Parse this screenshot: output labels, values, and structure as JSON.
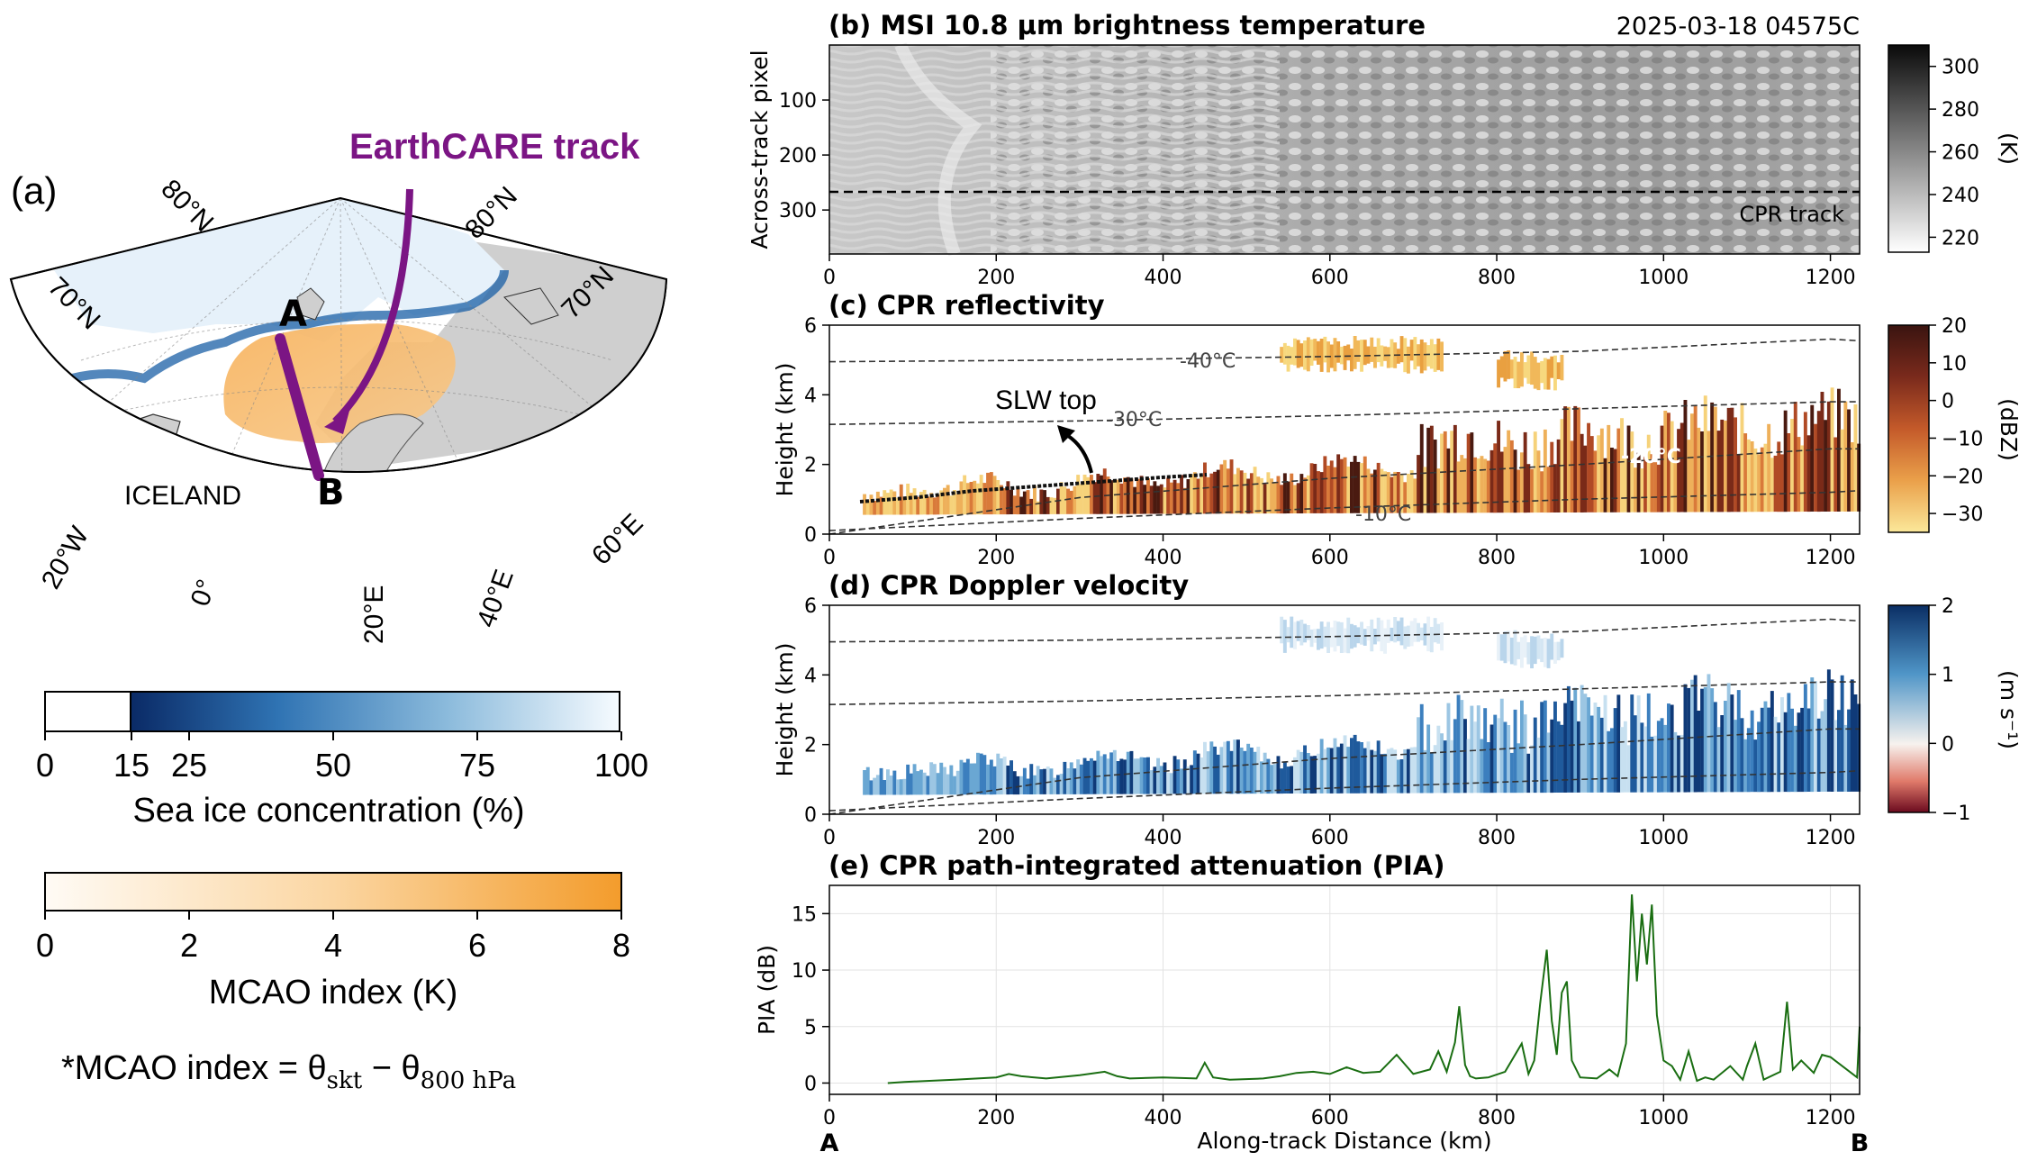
{
  "panel_a": {
    "label": "(a)",
    "track_label": "EarthCARE track",
    "point_a": "A",
    "point_b": "B",
    "country_label": "ICELAND",
    "lat_labels": [
      "70°N",
      "80°N",
      "80°N",
      "70°N"
    ],
    "lon_labels": [
      "20°W",
      "0°",
      "20°E",
      "40°E",
      "60°E"
    ],
    "sea_ice_colorbar": {
      "title": "Sea ice concentration (%)",
      "ticks": [
        "0",
        "15",
        "25",
        "50",
        "75",
        "100"
      ]
    },
    "mcao_colorbar": {
      "title": "MCAO index (K)",
      "ticks": [
        "0",
        "2",
        "4",
        "6",
        "8"
      ]
    },
    "formula": {
      "lhs": "*MCAO index = θ",
      "sub1": "skt",
      "minus": " − θ",
      "sub2": "800 hPa"
    },
    "colors": {
      "track": "#7b1584",
      "ice_dark": "#0b3a78",
      "mcao": "#f4a43c",
      "land": "#d4d4d4"
    }
  },
  "chart_data": [
    {
      "id": "b",
      "type": "heatmap",
      "title": "(b) MSI 10.8 µm brightness temperature",
      "subtitle": "2025-03-18 04575C",
      "ylabel": "Across-track pixel",
      "xlim": [
        0,
        1235
      ],
      "ylim": [
        380,
        0
      ],
      "x_ticks": [
        "0",
        "200",
        "400",
        "600",
        "800",
        "1000",
        "1200"
      ],
      "y_ticks": [
        "100",
        "200",
        "300"
      ],
      "annotation": "CPR track",
      "cpr_track_pixel": 267,
      "colorbar": {
        "label": "(K)",
        "ticks": [
          "220",
          "240",
          "260",
          "280",
          "300"
        ],
        "range": [
          213,
          310
        ]
      }
    },
    {
      "id": "c",
      "type": "heatmap",
      "title": "(c) CPR reflectivity",
      "ylabel": "Height (km)",
      "xlim": [
        0,
        1235
      ],
      "ylim": [
        0,
        6
      ],
      "x_ticks": [
        "0",
        "200",
        "400",
        "600",
        "800",
        "1000",
        "1200"
      ],
      "y_ticks": [
        "0",
        "2",
        "4",
        "6"
      ],
      "annotations": [
        "-40°C",
        "-30°C",
        "-20°C",
        "-10°C",
        "SLW top"
      ],
      "isotherms_km": {
        "x": [
          0,
          300,
          600,
          900,
          1200,
          1235
        ],
        "m40": [
          4.95,
          5.0,
          5.1,
          5.25,
          5.6,
          5.55
        ],
        "m30": [
          3.15,
          3.25,
          3.4,
          3.6,
          3.8,
          3.8
        ],
        "m20": [
          0,
          1.05,
          1.6,
          2.0,
          2.45,
          2.45
        ],
        "m10": [
          0.1,
          0.45,
          0.75,
          1.0,
          1.2,
          1.25
        ]
      },
      "colorbar": {
        "label": "(dBZ)",
        "ticks": [
          "20",
          "10",
          "0",
          "−10",
          "−20",
          "−30"
        ],
        "range": [
          -35,
          20
        ]
      }
    },
    {
      "id": "d",
      "type": "heatmap",
      "title": "(d) CPR Doppler velocity",
      "ylabel": "Height (km)",
      "xlim": [
        0,
        1235
      ],
      "ylim": [
        0,
        6
      ],
      "x_ticks": [
        "0",
        "200",
        "400",
        "600",
        "800",
        "1000",
        "1200"
      ],
      "y_ticks": [
        "0",
        "2",
        "4",
        "6"
      ],
      "colorbar": {
        "label": "(m s⁻¹)",
        "ticks": [
          "2",
          "1",
          "0",
          "−1"
        ],
        "range": [
          -1,
          2
        ]
      }
    },
    {
      "id": "e",
      "type": "line",
      "title": "(e) CPR path-integrated attenuation (PIA)",
      "ylabel": "PIA (dB)",
      "xlabel": "Along-track Distance (km)",
      "xlim": [
        0,
        1235
      ],
      "ylim": [
        -1,
        17.5
      ],
      "x_ticks": [
        "0",
        "200",
        "400",
        "600",
        "800",
        "1000",
        "1200"
      ],
      "y_ticks": [
        "0",
        "5",
        "10",
        "15"
      ],
      "end_labels": [
        "A",
        "B"
      ],
      "series": [
        {
          "color": "#1a6e12",
          "x": [
            70,
            90,
            120,
            150,
            200,
            215,
            230,
            260,
            300,
            330,
            345,
            360,
            400,
            440,
            450,
            460,
            480,
            520,
            540,
            560,
            580,
            600,
            620,
            640,
            660,
            680,
            700,
            720,
            730,
            740,
            750,
            755,
            762,
            768,
            775,
            790,
            810,
            830,
            838,
            845,
            852,
            860,
            866,
            872,
            878,
            884,
            890,
            900,
            920,
            935,
            945,
            955,
            962,
            968,
            974,
            980,
            986,
            992,
            1000,
            1010,
            1020,
            1030,
            1040,
            1050,
            1060,
            1080,
            1095,
            1100,
            1110,
            1120,
            1140,
            1148,
            1155,
            1165,
            1180,
            1190,
            1200,
            1232,
            1235
          ],
          "y": [
            0,
            0.1,
            0.2,
            0.3,
            0.5,
            0.8,
            0.6,
            0.4,
            0.7,
            1.0,
            0.6,
            0.4,
            0.5,
            0.4,
            1.8,
            0.5,
            0.3,
            0.4,
            0.6,
            0.9,
            1.0,
            0.8,
            1.4,
            0.9,
            1.0,
            2.5,
            0.8,
            1.2,
            2.8,
            1.0,
            3.6,
            6.8,
            1.6,
            0.6,
            0.4,
            0.5,
            1.0,
            3.5,
            0.8,
            2.0,
            7.0,
            11.8,
            5.5,
            2.5,
            8.0,
            9.0,
            2.0,
            0.5,
            0.4,
            1.2,
            0.6,
            3.5,
            16.7,
            9.0,
            15.0,
            10.5,
            15.8,
            6.0,
            2.0,
            1.5,
            0.3,
            2.8,
            0.2,
            0.5,
            0.3,
            1.5,
            0.3,
            1.5,
            3.5,
            0.3,
            1.0,
            7.2,
            1.2,
            2.0,
            0.9,
            2.5,
            2.3,
            0.5,
            5.0
          ]
        }
      ]
    }
  ]
}
